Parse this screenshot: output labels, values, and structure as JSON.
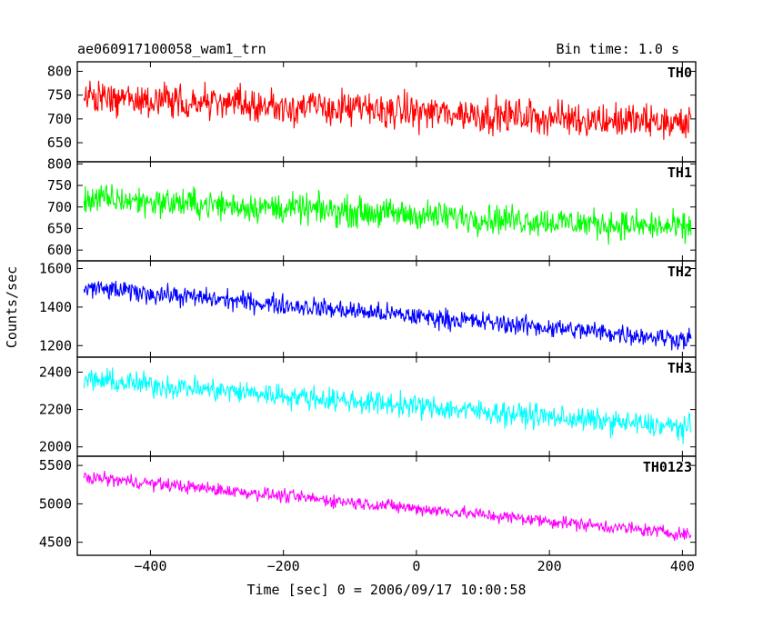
{
  "chart_data": {
    "type": "line",
    "title": "ae060917100058_wam1_trn",
    "bin_time_label": "Bin time: 1.0 s",
    "xlabel": "Time [sec] 0 = 2006/09/17 10:00:58",
    "ylabel": "Counts/sec",
    "xlim": [
      -510,
      420
    ],
    "x_ticks": [
      -400,
      -200,
      0,
      200,
      400
    ],
    "x_tick_labels": [
      "−400",
      "−200",
      "0",
      "200",
      "400"
    ],
    "data_x_range": [
      -500,
      413
    ],
    "grid": false,
    "panels": [
      {
        "name": "TH0",
        "color": "#ff0000",
        "ylim": [
          610,
          820
        ],
        "yticks": [
          650,
          700,
          750,
          800
        ],
        "ytick_labels": [
          "650",
          "700",
          "750",
          "800"
        ],
        "start_value": 745,
        "end_value": 690,
        "noise_amplitude": 32,
        "observed_min": 625,
        "observed_max": 820
      },
      {
        "name": "TH1",
        "color": "#00ff00",
        "ylim": [
          575,
          805
        ],
        "yticks": [
          600,
          650,
          700,
          750,
          800
        ],
        "ytick_labels": [
          "600",
          "650",
          "700",
          "750",
          "800"
        ],
        "start_value": 720,
        "end_value": 650,
        "noise_amplitude": 30,
        "observed_min": 585,
        "observed_max": 800
      },
      {
        "name": "TH2",
        "color": "#0000ff",
        "ylim": [
          1140,
          1640
        ],
        "yticks": [
          1200,
          1400,
          1600
        ],
        "ytick_labels": [
          "1200",
          "1400",
          "1600"
        ],
        "start_value": 1500,
        "end_value": 1230,
        "noise_amplitude": 45,
        "observed_min": 1160,
        "observed_max": 1630
      },
      {
        "name": "TH3",
        "color": "#00ffff",
        "ylim": [
          1950,
          2480
        ],
        "yticks": [
          2000,
          2200,
          2400
        ],
        "ytick_labels": [
          "2000",
          "2200",
          "2400"
        ],
        "start_value": 2360,
        "end_value": 2100,
        "noise_amplitude": 55,
        "observed_min": 1990,
        "observed_max": 2480
      },
      {
        "name": "TH0123",
        "color": "#ff00ff",
        "ylim": [
          4330,
          5620
        ],
        "yticks": [
          4500,
          5000,
          5500
        ],
        "ytick_labels": [
          "4500",
          "5000",
          "5500"
        ],
        "start_value": 5350,
        "end_value": 4600,
        "noise_amplitude": 75,
        "observed_min": 4400,
        "observed_max": 5560
      }
    ]
  }
}
